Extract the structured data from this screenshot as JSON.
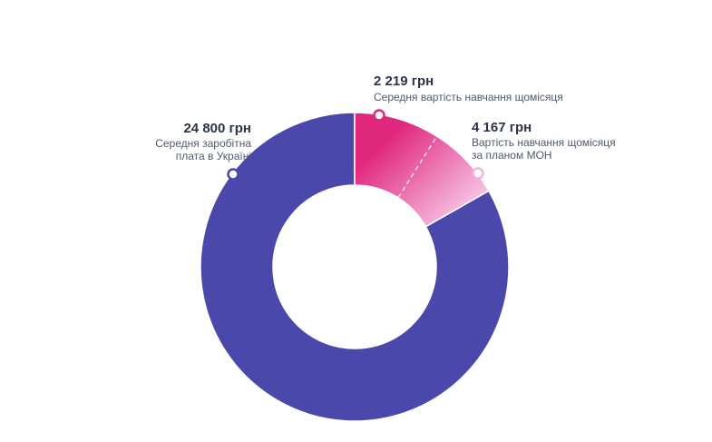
{
  "chart_data": {
    "type": "donut",
    "total_label": "24 800 грн",
    "series": [
      {
        "value": 24800,
        "value_label": "24 800 грн",
        "description": [
          "Середня заробітна",
          "плата в Україні"
        ],
        "color": "#4a48aa"
      },
      {
        "value": 2219,
        "value_label": "2 219 грн",
        "description": [
          "Середня вартість навчання щомісяця"
        ],
        "color": "#e0277e"
      },
      {
        "value": 4167,
        "value_label": "4 167 грн",
        "description": [
          "Вартість навчання щомісяця",
          "за планом МОН"
        ],
        "color": "#f4b3dc"
      }
    ],
    "colors": {
      "base": "#4a48aa",
      "avg_cost": "#e0277e",
      "plan_cost_light": "#f4b3dc",
      "text_value": "#2a3348",
      "text_desc": "#4f5a6e"
    }
  }
}
